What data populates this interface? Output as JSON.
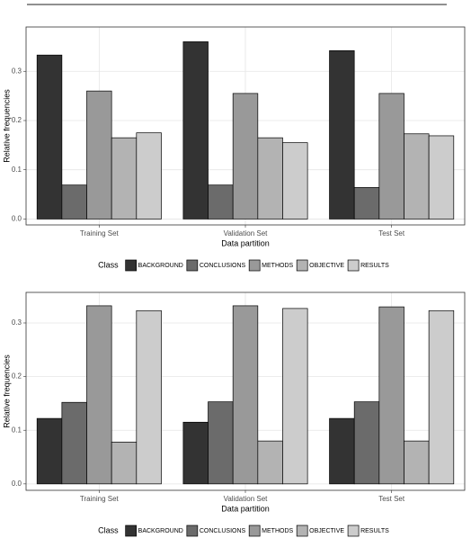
{
  "chart_data": [
    {
      "type": "bar",
      "x_label": "Data partition",
      "y_label": "Relative frequencies",
      "legend_title": "Class",
      "categories": [
        "Training Set",
        "Validation Set",
        "Test Set"
      ],
      "series": [
        {
          "name": "BACKGROUND",
          "color": "#333333",
          "values": [
            0.333,
            0.36,
            0.342
          ]
        },
        {
          "name": "CONCLUSIONS",
          "color": "#6b6b6b",
          "values": [
            0.069,
            0.069,
            0.064
          ]
        },
        {
          "name": "METHODS",
          "color": "#999999",
          "values": [
            0.26,
            0.255,
            0.255
          ]
        },
        {
          "name": "OBJECTIVE",
          "color": "#b3b3b3",
          "values": [
            0.165,
            0.165,
            0.173
          ]
        },
        {
          "name": "RESULTS",
          "color": "#cccccc",
          "values": [
            0.175,
            0.155,
            0.169
          ]
        }
      ],
      "ylim": [
        -0.012,
        0.39
      ],
      "yticks": [
        {
          "value": 0,
          "label": "0.0"
        },
        0.1,
        0.2,
        0.3
      ],
      "grid": true,
      "legend": "bottom"
    },
    {
      "type": "bar",
      "x_label": "Data partition",
      "y_label": "Relative frequencies",
      "legend_title": "Class",
      "categories": [
        "Training Set",
        "Validation Set",
        "Test Set"
      ],
      "series": [
        {
          "name": "BACKGROUND",
          "color": "#333333",
          "values": [
            0.122,
            0.115,
            0.122
          ]
        },
        {
          "name": "CONCLUSIONS",
          "color": "#6b6b6b",
          "values": [
            0.152,
            0.153,
            0.153
          ]
        },
        {
          "name": "METHODS",
          "color": "#999999",
          "values": [
            0.332,
            0.332,
            0.33
          ]
        },
        {
          "name": "OBJECTIVE",
          "color": "#b3b3b3",
          "values": [
            0.078,
            0.08,
            0.08
          ]
        },
        {
          "name": "RESULTS",
          "color": "#cccccc",
          "values": [
            0.323,
            0.327,
            0.323
          ]
        }
      ],
      "ylim": [
        -0.012,
        0.357
      ],
      "yticks": [
        {
          "value": 0,
          "label": "0.0"
        },
        0.1,
        0.2,
        0.3
      ],
      "grid": true,
      "legend": "bottom"
    }
  ]
}
